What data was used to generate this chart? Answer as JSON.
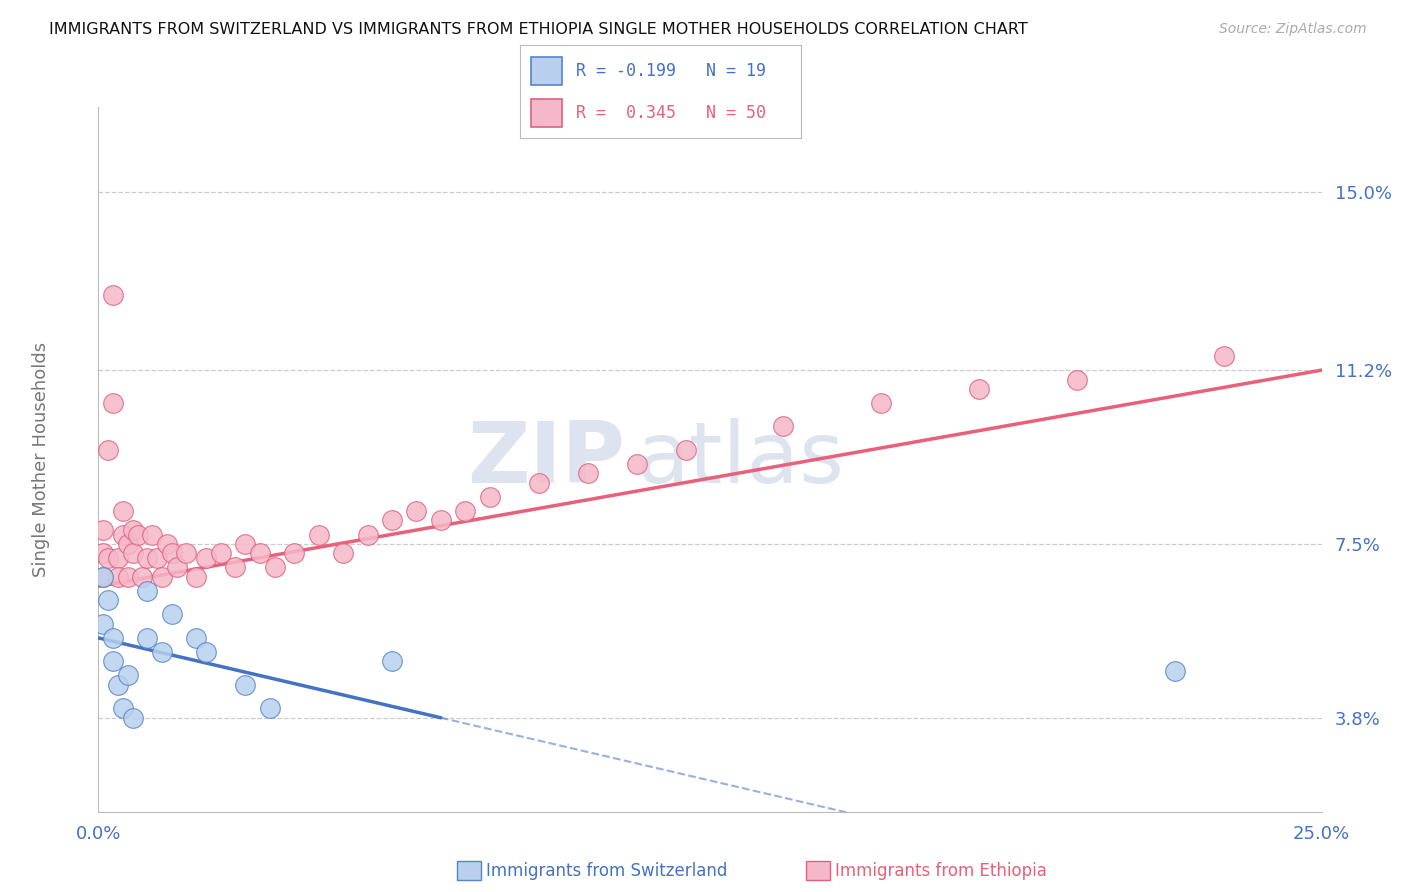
{
  "title": "IMMIGRANTS FROM SWITZERLAND VS IMMIGRANTS FROM ETHIOPIA SINGLE MOTHER HOUSEHOLDS CORRELATION CHART",
  "source": "Source: ZipAtlas.com",
  "ylabel": "Single Mother Households",
  "ytick_labels": [
    "3.8%",
    "7.5%",
    "11.2%",
    "15.0%"
  ],
  "ytick_values": [
    0.038,
    0.075,
    0.112,
    0.15
  ],
  "xmin": 0.0,
  "xmax": 0.25,
  "ymin": 0.018,
  "ymax": 0.168,
  "color_swiss_fill": "#b8d0ee",
  "color_swiss_edge": "#5585c8",
  "color_ethiopia_fill": "#f5b8c8",
  "color_ethiopia_edge": "#e06080",
  "color_swiss_line": "#4472c4",
  "color_ethiopia_line": "#e8607a",
  "swiss_x": [
    0.001,
    0.001,
    0.002,
    0.003,
    0.003,
    0.004,
    0.005,
    0.006,
    0.007,
    0.01,
    0.01,
    0.013,
    0.015,
    0.02,
    0.022,
    0.03,
    0.035,
    0.06,
    0.22
  ],
  "swiss_y": [
    0.058,
    0.068,
    0.063,
    0.055,
    0.05,
    0.045,
    0.04,
    0.047,
    0.038,
    0.065,
    0.055,
    0.052,
    0.06,
    0.055,
    0.052,
    0.045,
    0.04,
    0.05,
    0.048
  ],
  "ethiopia_x": [
    0.001,
    0.001,
    0.001,
    0.002,
    0.002,
    0.003,
    0.003,
    0.004,
    0.004,
    0.005,
    0.005,
    0.006,
    0.006,
    0.007,
    0.007,
    0.008,
    0.009,
    0.01,
    0.011,
    0.012,
    0.013,
    0.014,
    0.015,
    0.016,
    0.018,
    0.02,
    0.022,
    0.025,
    0.028,
    0.03,
    0.033,
    0.036,
    0.04,
    0.045,
    0.05,
    0.055,
    0.06,
    0.065,
    0.07,
    0.075,
    0.08,
    0.09,
    0.1,
    0.11,
    0.12,
    0.14,
    0.16,
    0.18,
    0.2,
    0.23
  ],
  "ethiopia_y": [
    0.068,
    0.073,
    0.078,
    0.095,
    0.072,
    0.128,
    0.105,
    0.072,
    0.068,
    0.077,
    0.082,
    0.068,
    0.075,
    0.073,
    0.078,
    0.077,
    0.068,
    0.072,
    0.077,
    0.072,
    0.068,
    0.075,
    0.073,
    0.07,
    0.073,
    0.068,
    0.072,
    0.073,
    0.07,
    0.075,
    0.073,
    0.07,
    0.073,
    0.077,
    0.073,
    0.077,
    0.08,
    0.082,
    0.08,
    0.082,
    0.085,
    0.088,
    0.09,
    0.092,
    0.095,
    0.1,
    0.105,
    0.108,
    0.11,
    0.115
  ],
  "sw_trend_x0": 0.0,
  "sw_trend_x_solid_end": 0.07,
  "sw_trend_y0": 0.055,
  "sw_trend_y_solid_end": 0.038,
  "eth_trend_x0": 0.0,
  "eth_trend_x_end": 0.25,
  "eth_trend_y0": 0.066,
  "eth_trend_y_end": 0.112,
  "legend_text_swiss": "R = -0.199   N = 19",
  "legend_text_eth": "R =  0.345   N = 50",
  "bottom_label_swiss": "Immigrants from Switzerland",
  "bottom_label_eth": "Immigrants from Ethiopia"
}
